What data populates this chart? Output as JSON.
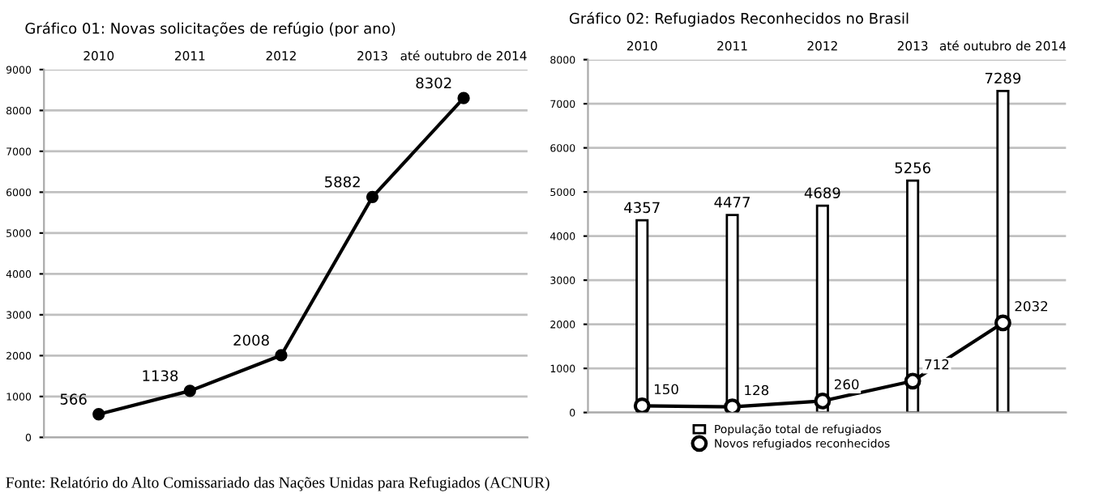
{
  "chart_data": [
    {
      "type": "line",
      "title": "Gráfico 01: Novas solicitações de refúgio (por ano)",
      "categories": [
        "2010",
        "2011",
        "2012",
        "2013",
        "até outubro de 2014"
      ],
      "series": [
        {
          "color": "#000000",
          "values": [
            566,
            1138,
            2008,
            5882,
            8302
          ],
          "marker": "circle"
        }
      ],
      "ylim": [
        0,
        9000
      ],
      "yticks": [
        0,
        1000,
        2000,
        3000,
        4000,
        5000,
        6000,
        7000,
        8000,
        9000
      ],
      "grid": "y",
      "data_labels": true,
      "legend": false,
      "annotations": [
        "Fonte: Relatório do Alto Comissariado das Nações Unidas para Refugiados (ACNUR)"
      ]
    },
    {
      "type": "bar",
      "title": "Gráfico 02: Refugiados Reconhecidos no Brasil",
      "categories": [
        "2010",
        "2011",
        "2012",
        "2013",
        "até outubro de 2014"
      ],
      "series": [
        {
          "name": "População total de refugiados",
          "color": "#ffffff",
          "values": [
            4357,
            4477,
            4689,
            5256,
            7289
          ]
        },
        {
          "name": "Novos refugiados reconhecidos",
          "type": "line",
          "color": "#000000",
          "marker": "circle",
          "values": [
            150,
            128,
            260,
            712,
            2032
          ]
        }
      ],
      "ylim": [
        0,
        8000
      ],
      "yticks": [
        0,
        1000,
        2000,
        3000,
        4000,
        5000,
        6000,
        7000,
        8000
      ],
      "grid": "y",
      "data_labels": true,
      "legend": "bottom"
    }
  ]
}
